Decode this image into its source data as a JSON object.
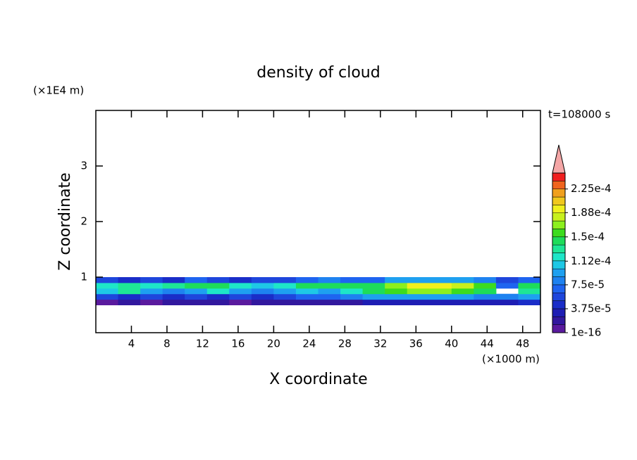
{
  "chart_data": {
    "type": "contourf",
    "title": "density of cloud",
    "x_label": "X coordinate",
    "y_label": "Z coordinate",
    "x_unit": "(×1000 m)",
    "y_unit": "(×1E4 m)",
    "annotation": "t=108000 s",
    "xlim": [
      0,
      50
    ],
    "ylim": [
      0,
      4
    ],
    "xticks": [
      4,
      8,
      12,
      16,
      20,
      24,
      28,
      32,
      36,
      40,
      44,
      48
    ],
    "yticks": [
      1,
      2,
      3
    ],
    "x_edges": [
      0,
      2.5,
      5,
      7.5,
      10,
      12.5,
      15,
      17.5,
      20,
      22.5,
      25,
      27.5,
      30,
      32.5,
      35,
      37.5,
      40,
      42.5,
      45,
      47.5,
      50
    ],
    "y_edges": [
      0.5,
      0.6,
      0.7,
      0.8,
      0.9,
      1.0
    ],
    "z": [
      [
        1e-05,
        2e-05,
        1e-05,
        2e-05,
        2e-05,
        2e-05,
        1e-05,
        2e-05,
        2e-05,
        2e-05,
        2e-05,
        2e-05,
        3e-05,
        3e-05,
        3e-05,
        3e-05,
        3e-05,
        3e-05,
        3e-05,
        4e-05
      ],
      [
        6e-05,
        5e-05,
        6e-05,
        5e-05,
        6e-05,
        5e-05,
        6e-05,
        5e-05,
        6e-05,
        7e-05,
        7e-05,
        8e-05,
        9e-05,
        9e-05,
        9e-05,
        9e-05,
        9e-05,
        8e-05,
        8e-05,
        9e-05
      ],
      [
        0.00011,
        0.00013,
        9e-05,
        8e-05,
        0.0001,
        0.00012,
        9e-05,
        8e-05,
        0.0001,
        0.00011,
        0.0001,
        0.00012,
        0.00014,
        0.00016,
        0.00017,
        0.00017,
        0.00016,
        0.00015,
        null,
        0.00013
      ],
      [
        0.00012,
        0.00013,
        0.00012,
        0.00013,
        0.00014,
        0.00015,
        0.00012,
        0.00011,
        0.00012,
        0.00015,
        0.00015,
        0.00014,
        0.00015,
        0.00017,
        0.00019,
        0.00019,
        0.00018,
        0.00016,
        7e-05,
        0.00015
      ],
      [
        6e-05,
        5e-05,
        6e-05,
        5e-05,
        7e-05,
        6e-05,
        5e-05,
        6e-05,
        6e-05,
        7e-05,
        8e-05,
        7e-05,
        7e-05,
        9e-05,
        0.0001,
        0.0001,
        0.0001,
        8e-05,
        6e-05,
        7e-05
      ]
    ],
    "clim": [
      1e-16,
      0.00025
    ],
    "cticks": [
      1e-16,
      {
        "value": 3.75e-05,
        "label": "3.75e-5"
      },
      {
        "value": 7.5e-05,
        "label": "7.5e-5"
      },
      {
        "value": 0.000112,
        "label": "1.12e-4"
      },
      {
        "value": 0.00015,
        "label": "1.5e-4"
      },
      {
        "value": 0.000188,
        "label": "1.88e-4"
      },
      {
        "value": 0.000225,
        "label": "2.25e-4"
      }
    ],
    "colors": [
      "#5a1a9e",
      "#32189e",
      "#1e1eb4",
      "#1a2dc8",
      "#1e46dc",
      "#1e64f0",
      "#1e82f0",
      "#1ea0f0",
      "#1ec8e6",
      "#1ee6c8",
      "#1ee696",
      "#1edc5a",
      "#3cdc1e",
      "#8cf01e",
      "#c8f01e",
      "#f0f01e",
      "#f0c81e",
      "#f0a01e",
      "#f0641e",
      "#f01e1e"
    ],
    "over_color": "#f4a6a6"
  }
}
